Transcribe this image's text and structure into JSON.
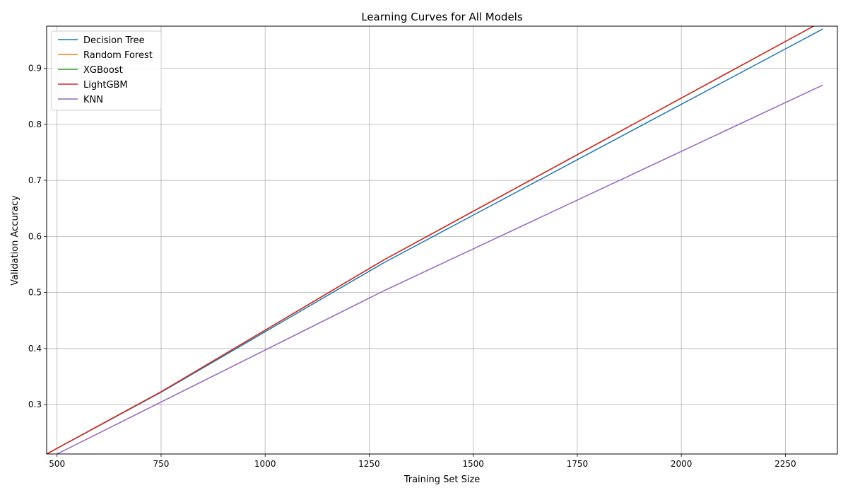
{
  "chart_data": {
    "type": "line",
    "title": "Learning Curves for All Models",
    "xlabel": "Training Set Size",
    "ylabel": "Validation Accuracy",
    "xlim": [
      475,
      2375
    ],
    "ylim": [
      0.212,
      0.975
    ],
    "xticks": [
      500,
      750,
      1000,
      1250,
      1500,
      1750,
      2000,
      2250
    ],
    "xtick_labels": [
      "500",
      "750",
      "1000",
      "1250",
      "1500",
      "1750",
      "2000",
      "2250"
    ],
    "yticks": [
      0.3,
      0.4,
      0.5,
      0.6,
      0.7,
      0.8,
      0.9
    ],
    "ytick_labels": [
      "0.3",
      "0.4",
      "0.5",
      "0.6",
      "0.7",
      "0.8",
      "0.9"
    ],
    "grid": true,
    "legend_position": "top-left",
    "series": [
      {
        "name": "Decision Tree",
        "color": "#1f77b4",
        "x": [
          475,
          750,
          1285,
          2340
        ],
        "y": [
          0.212,
          0.322,
          0.553,
          0.97
        ]
      },
      {
        "name": "Random Forest",
        "color": "#ff7f0e",
        "x": [
          475,
          750,
          1285,
          2330
        ],
        "y": [
          0.212,
          0.323,
          0.558,
          0.98
        ]
      },
      {
        "name": "XGBoost",
        "color": "#2ca02c",
        "x": [
          475,
          750,
          1285,
          2330
        ],
        "y": [
          0.212,
          0.323,
          0.558,
          0.98
        ]
      },
      {
        "name": "LightGBM",
        "color": "#d62728",
        "x": [
          475,
          750,
          1285,
          2330
        ],
        "y": [
          0.212,
          0.323,
          0.558,
          0.98
        ]
      },
      {
        "name": "KNN",
        "color": "#9467bd",
        "x": [
          500,
          1285,
          2340
        ],
        "y": [
          0.212,
          0.503,
          0.87
        ]
      }
    ]
  }
}
